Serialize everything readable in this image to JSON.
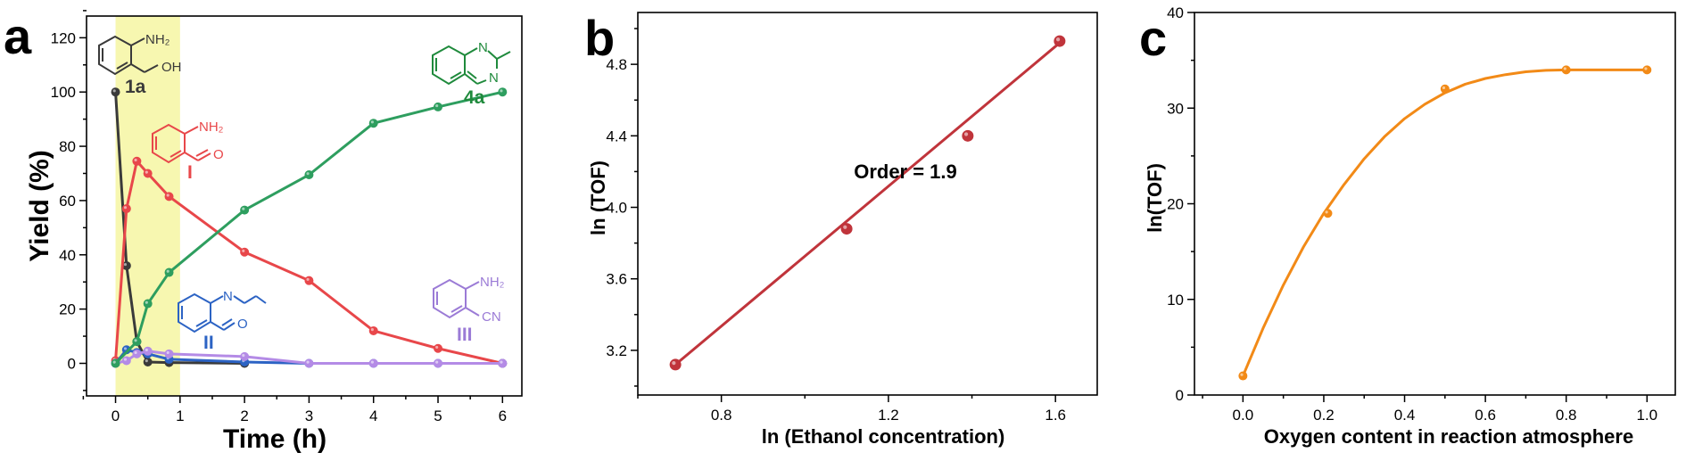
{
  "colors": {
    "axis": "#000000",
    "highlight": "#f7f7b0",
    "series_1a": "#3a3a3a",
    "series_I": "#e8474a",
    "series_II": "#2c63c4",
    "series_III": "#b48be6",
    "series_4a": "#2e9e5f",
    "panel_b_line": "#c0343b",
    "panel_b_points": "#c0343b",
    "panel_c_line": "#f28a17",
    "panel_c_points": "#f28a17"
  },
  "panels": {
    "a": {
      "letter": "a"
    },
    "b": {
      "letter": "b",
      "annotation": "Order = 1.9"
    },
    "c": {
      "letter": "c"
    }
  },
  "structures": {
    "s1a": {
      "label": "1a",
      "atoms": [
        "NH₂",
        "OH"
      ]
    },
    "sI": {
      "label": "I",
      "atoms": [
        "NH₂",
        "O"
      ]
    },
    "sII": {
      "label": "II",
      "atoms": [
        "N",
        "O"
      ]
    },
    "sIII": {
      "label": "III",
      "atoms": [
        "NH₂",
        "CN"
      ]
    },
    "s4a": {
      "label": "4a",
      "atoms": [
        "N",
        "N"
      ]
    }
  },
  "chart_data": [
    {
      "panel": "a",
      "type": "line",
      "title": "",
      "xlabel": "Time (h)",
      "ylabel": "Yield (%)",
      "xlim": [
        -0.45,
        6.3
      ],
      "ylim": [
        -12,
        128
      ],
      "xticks": [
        0,
        1,
        2,
        3,
        4,
        5,
        6
      ],
      "yticks": [
        0,
        20,
        40,
        60,
        80,
        100,
        120
      ],
      "shaded_region_x": [
        0,
        1
      ],
      "series": [
        {
          "name": "1a",
          "color_key": "series_1a",
          "x": [
            0,
            0.17,
            0.33,
            0.5,
            0.83,
            2
          ],
          "y": [
            100,
            36,
            8,
            0.5,
            0.3,
            0
          ]
        },
        {
          "name": "I",
          "color_key": "series_I",
          "x": [
            0,
            0.17,
            0.33,
            0.5,
            0.83,
            2,
            3,
            4,
            5,
            6
          ],
          "y": [
            1,
            57,
            74.5,
            70,
            61.5,
            41,
            30.5,
            12,
            5.5,
            0
          ]
        },
        {
          "name": "II",
          "color_key": "series_II",
          "x": [
            0,
            0.17,
            0.33,
            0.5,
            0.83,
            2,
            3,
            4,
            5,
            6
          ],
          "y": [
            0,
            5,
            4,
            3.5,
            1.5,
            0.5,
            0,
            0,
            0,
            0
          ]
        },
        {
          "name": "III",
          "color_key": "series_III",
          "x": [
            0,
            0.17,
            0.33,
            0.5,
            0.83,
            2,
            3,
            4,
            5,
            6
          ],
          "y": [
            0,
            1,
            3.5,
            4.5,
            3.5,
            2.5,
            0,
            0,
            0,
            0
          ]
        },
        {
          "name": "4a",
          "color_key": "series_4a",
          "x": [
            0,
            0.33,
            0.5,
            0.83,
            2,
            3,
            4,
            5,
            6
          ],
          "y": [
            0,
            8,
            22,
            33.5,
            56.5,
            69.5,
            88.5,
            94.5,
            100
          ]
        }
      ]
    },
    {
      "panel": "b",
      "type": "scatter",
      "title": "",
      "xlabel": "ln (Ethanol concentration)",
      "ylabel": "ln (TOF)",
      "xlim": [
        0.6,
        1.7
      ],
      "ylim": [
        2.95,
        5.09
      ],
      "xticks": [
        0.8,
        1.2,
        1.6
      ],
      "ytick_labels": [
        "3.2",
        "3.6",
        "4.0",
        "4.4",
        "4.8"
      ],
      "points": {
        "x": [
          0.69,
          1.1,
          1.39,
          1.61
        ],
        "y": [
          3.12,
          3.88,
          4.4,
          4.93
        ]
      },
      "fit_line": {
        "x": [
          0.69,
          1.61
        ],
        "y": [
          3.12,
          4.92
        ]
      }
    },
    {
      "panel": "c",
      "type": "scatter",
      "title": "",
      "xlabel": "Oxygen content in reaction atmosphere",
      "ylabel": "ln(TOF)",
      "xlim": [
        -0.12,
        1.07
      ],
      "ylim": [
        0,
        40
      ],
      "xtick_labels": [
        "0.0",
        "0.2",
        "0.4",
        "0.6",
        "0.8",
        "1.0"
      ],
      "yticks": [
        0,
        10,
        20,
        30,
        40
      ],
      "points": {
        "x": [
          0,
          0.21,
          0.5,
          0.8,
          1.0
        ],
        "y": [
          2,
          19,
          32,
          34,
          34
        ]
      },
      "fit_curve": {
        "x": [
          0,
          0.05,
          0.1,
          0.15,
          0.2,
          0.25,
          0.3,
          0.35,
          0.4,
          0.45,
          0.5,
          0.55,
          0.6,
          0.65,
          0.7,
          0.75,
          0.8,
          0.85,
          0.9,
          0.95,
          1.0
        ],
        "y": [
          2,
          7.0,
          11.5,
          15.5,
          19.0,
          22.0,
          24.7,
          27.0,
          28.9,
          30.4,
          31.6,
          32.5,
          33.1,
          33.5,
          33.8,
          33.95,
          34.0,
          34.0,
          34.0,
          34.0,
          34.0
        ]
      }
    }
  ]
}
